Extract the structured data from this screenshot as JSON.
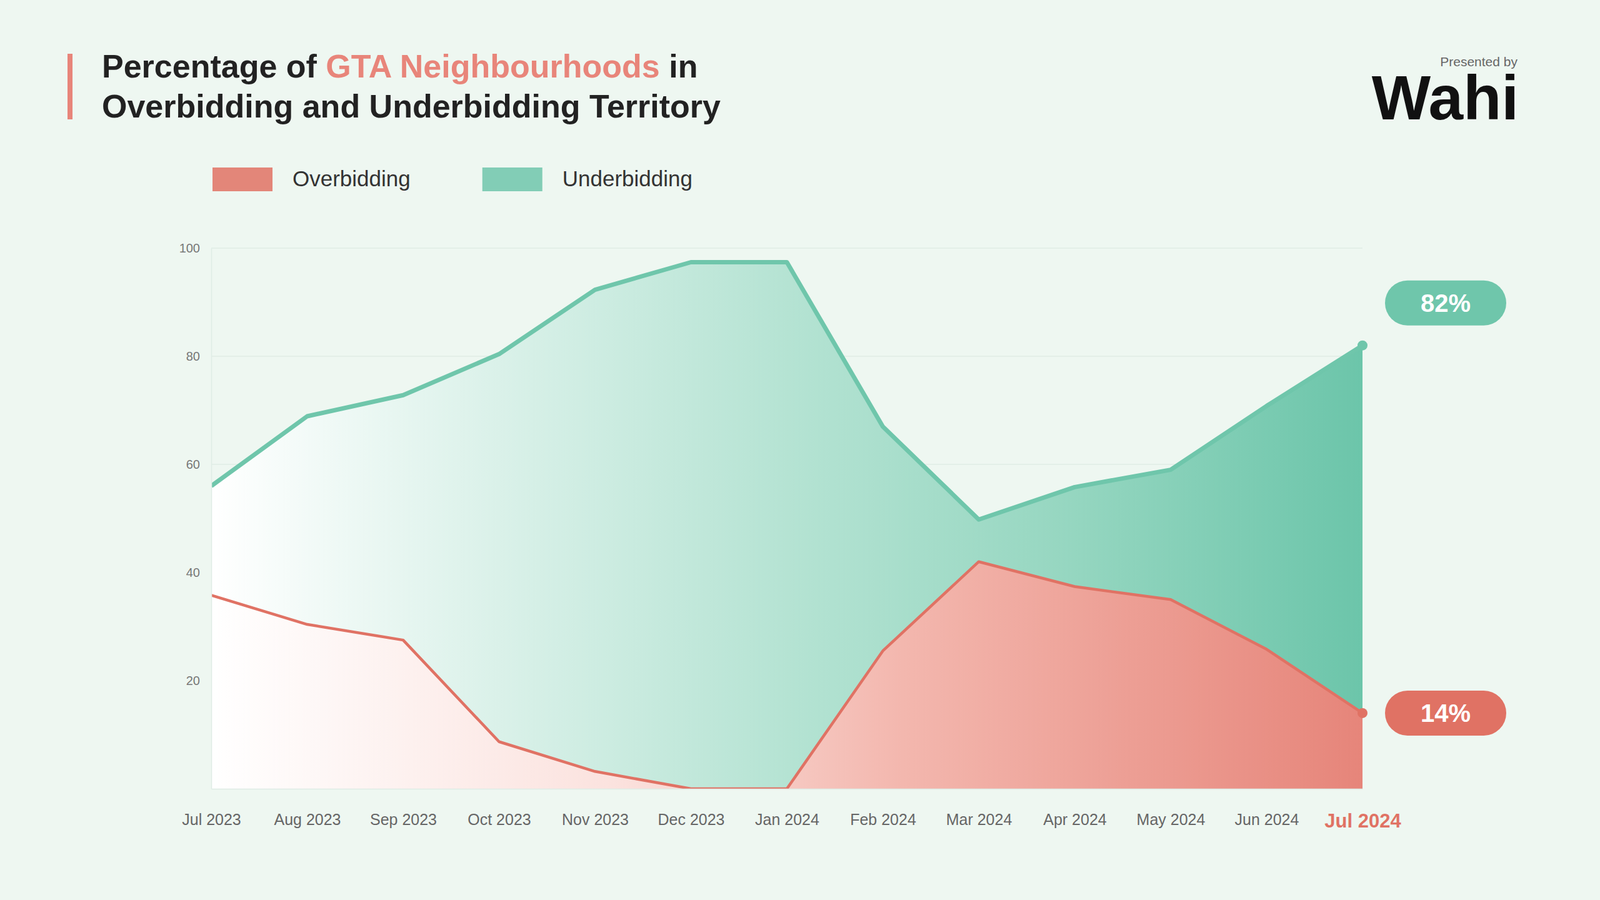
{
  "chart_data": {
    "type": "area",
    "title": "Percentage of GTA Neighbourhoods in Overbidding and Underbidding Territory",
    "title_highlight": "GTA Neighbourhoods",
    "credit": {
      "prefix": "Presented by",
      "brand": "Wahi"
    },
    "categories": [
      "Jul 2023",
      "Aug 2023",
      "Sep 2023",
      "Oct 2023",
      "Nov 2023",
      "Dec 2023",
      "Jan 2024",
      "Feb 2024",
      "Mar 2024",
      "Apr 2024",
      "May 2024",
      "Jun 2024",
      "Jul 2024"
    ],
    "series": [
      {
        "name": "Overbidding",
        "color": "#e07264",
        "values": [
          35.8,
          30.4,
          27.5,
          8.7,
          3.2,
          0,
          0,
          25.5,
          42,
          37.4,
          35,
          25.8,
          14
        ]
      },
      {
        "name": "Underbidding",
        "color": "#6fc6ab",
        "values": [
          56,
          68.9,
          72.8,
          80.4,
          92.3,
          97.4,
          97.4,
          67,
          49.8,
          55.8,
          59,
          70.8,
          82
        ]
      }
    ],
    "annotations": [
      {
        "label": "82%",
        "x": "Jul 2024",
        "y": 82,
        "color": "#6fc6ab"
      },
      {
        "label": "14%",
        "x": "Jul 2024",
        "y": 14,
        "color": "#e07264"
      }
    ],
    "ylim": [
      0,
      100
    ],
    "yticks": [
      20,
      40,
      60,
      80,
      100
    ],
    "grid": true,
    "legend": "top"
  }
}
